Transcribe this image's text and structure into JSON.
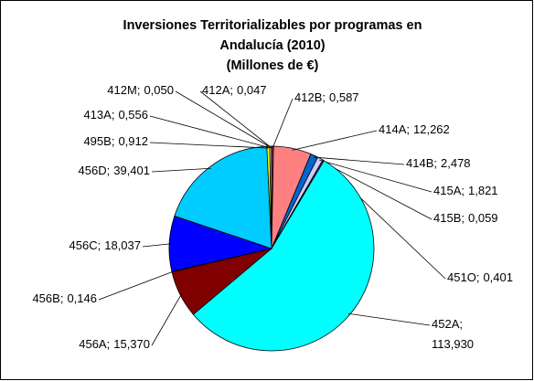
{
  "chart_data": {
    "type": "pie",
    "title": [
      "Inversiones Territorializables por programas en",
      "Andalucía (2010)",
      "(Millones de €)"
    ],
    "label_separator": ";",
    "categories": [
      "412A",
      "412B",
      "414A",
      "414B",
      "415A",
      "415B",
      "451O",
      "452A",
      "456A",
      "456B",
      "456C",
      "456D",
      "495B",
      "413A",
      "412M"
    ],
    "values": [
      0.047,
      0.587,
      12.262,
      2.478,
      1.821,
      0.059,
      0.401,
      113.93,
      15.37,
      0.146,
      18.037,
      39.401,
      0.912,
      0.556,
      0.05
    ],
    "value_labels": [
      "0,047",
      "0,587",
      "12,262",
      "2,478",
      "1,821",
      "0,059",
      "0,401",
      "113,930",
      "15,370",
      "0,146",
      "18,037",
      "39,401",
      "0,912",
      "0,556",
      "0,050"
    ],
    "colors": [
      "#9999FF",
      "#993366",
      "#FF8080",
      "#0066CC",
      "#CCCCFF",
      "#000080",
      "#FF00FF",
      "#00FFFF",
      "#800000",
      "#008080",
      "#0000FF",
      "#00CCFF",
      "#FFFF00",
      "#FFFFCC",
      "#CCFFFF"
    ]
  }
}
